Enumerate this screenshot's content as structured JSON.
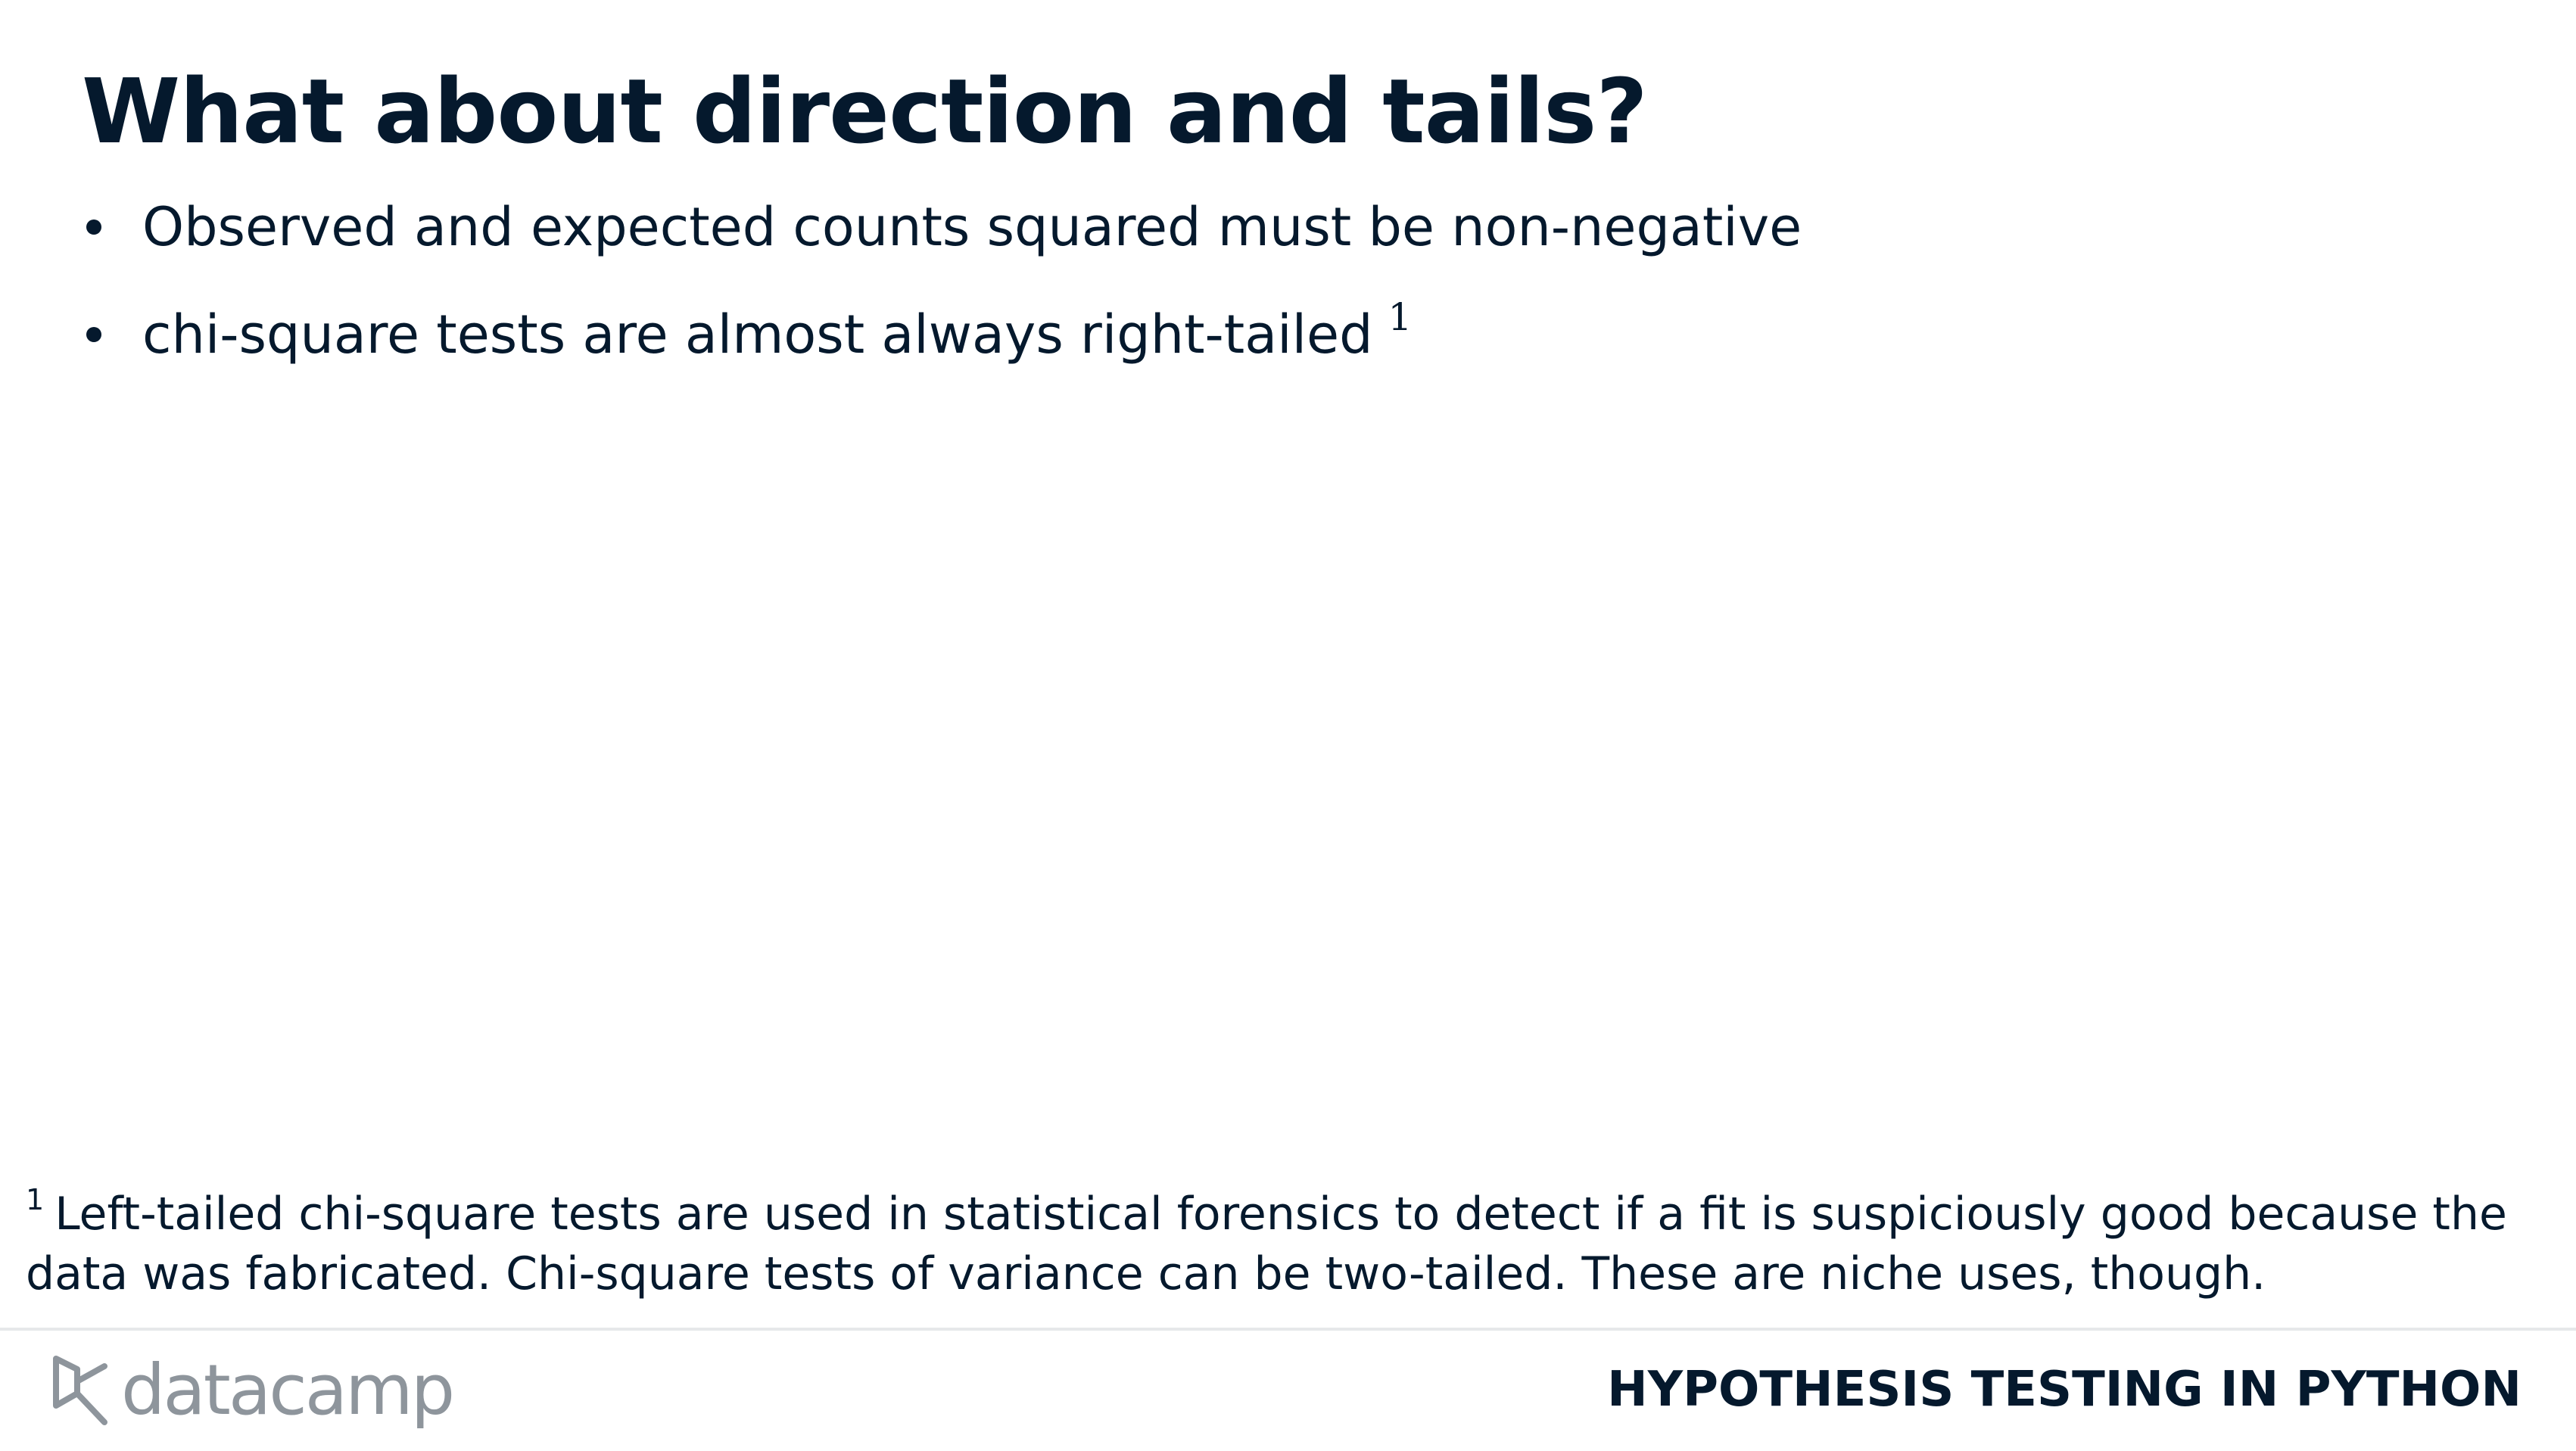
{
  "slide": {
    "title": "What about direction and tails?"
  },
  "bullets": [
    {
      "text": "Observed and expected counts squared must be non-negative"
    },
    {
      "text": "chi-square tests are almost always right-tailed",
      "ref": "1"
    }
  ],
  "footnote": {
    "marker": "1",
    "text": "Left-tailed chi-square tests are used in statistical forensics to detect if a fit is suspiciously good because the data was fabricated. Chi-square tests of variance can be two-tailed. These are niche uses, though."
  },
  "footer": {
    "brand": "datacamp",
    "brand_icon": "datacamp-logo-icon",
    "course_title": "HYPOTHESIS TESTING IN PYTHON"
  },
  "colors": {
    "text": "#05192d",
    "brand_grey": "#8e959c",
    "rule": "#e6e8ea"
  }
}
